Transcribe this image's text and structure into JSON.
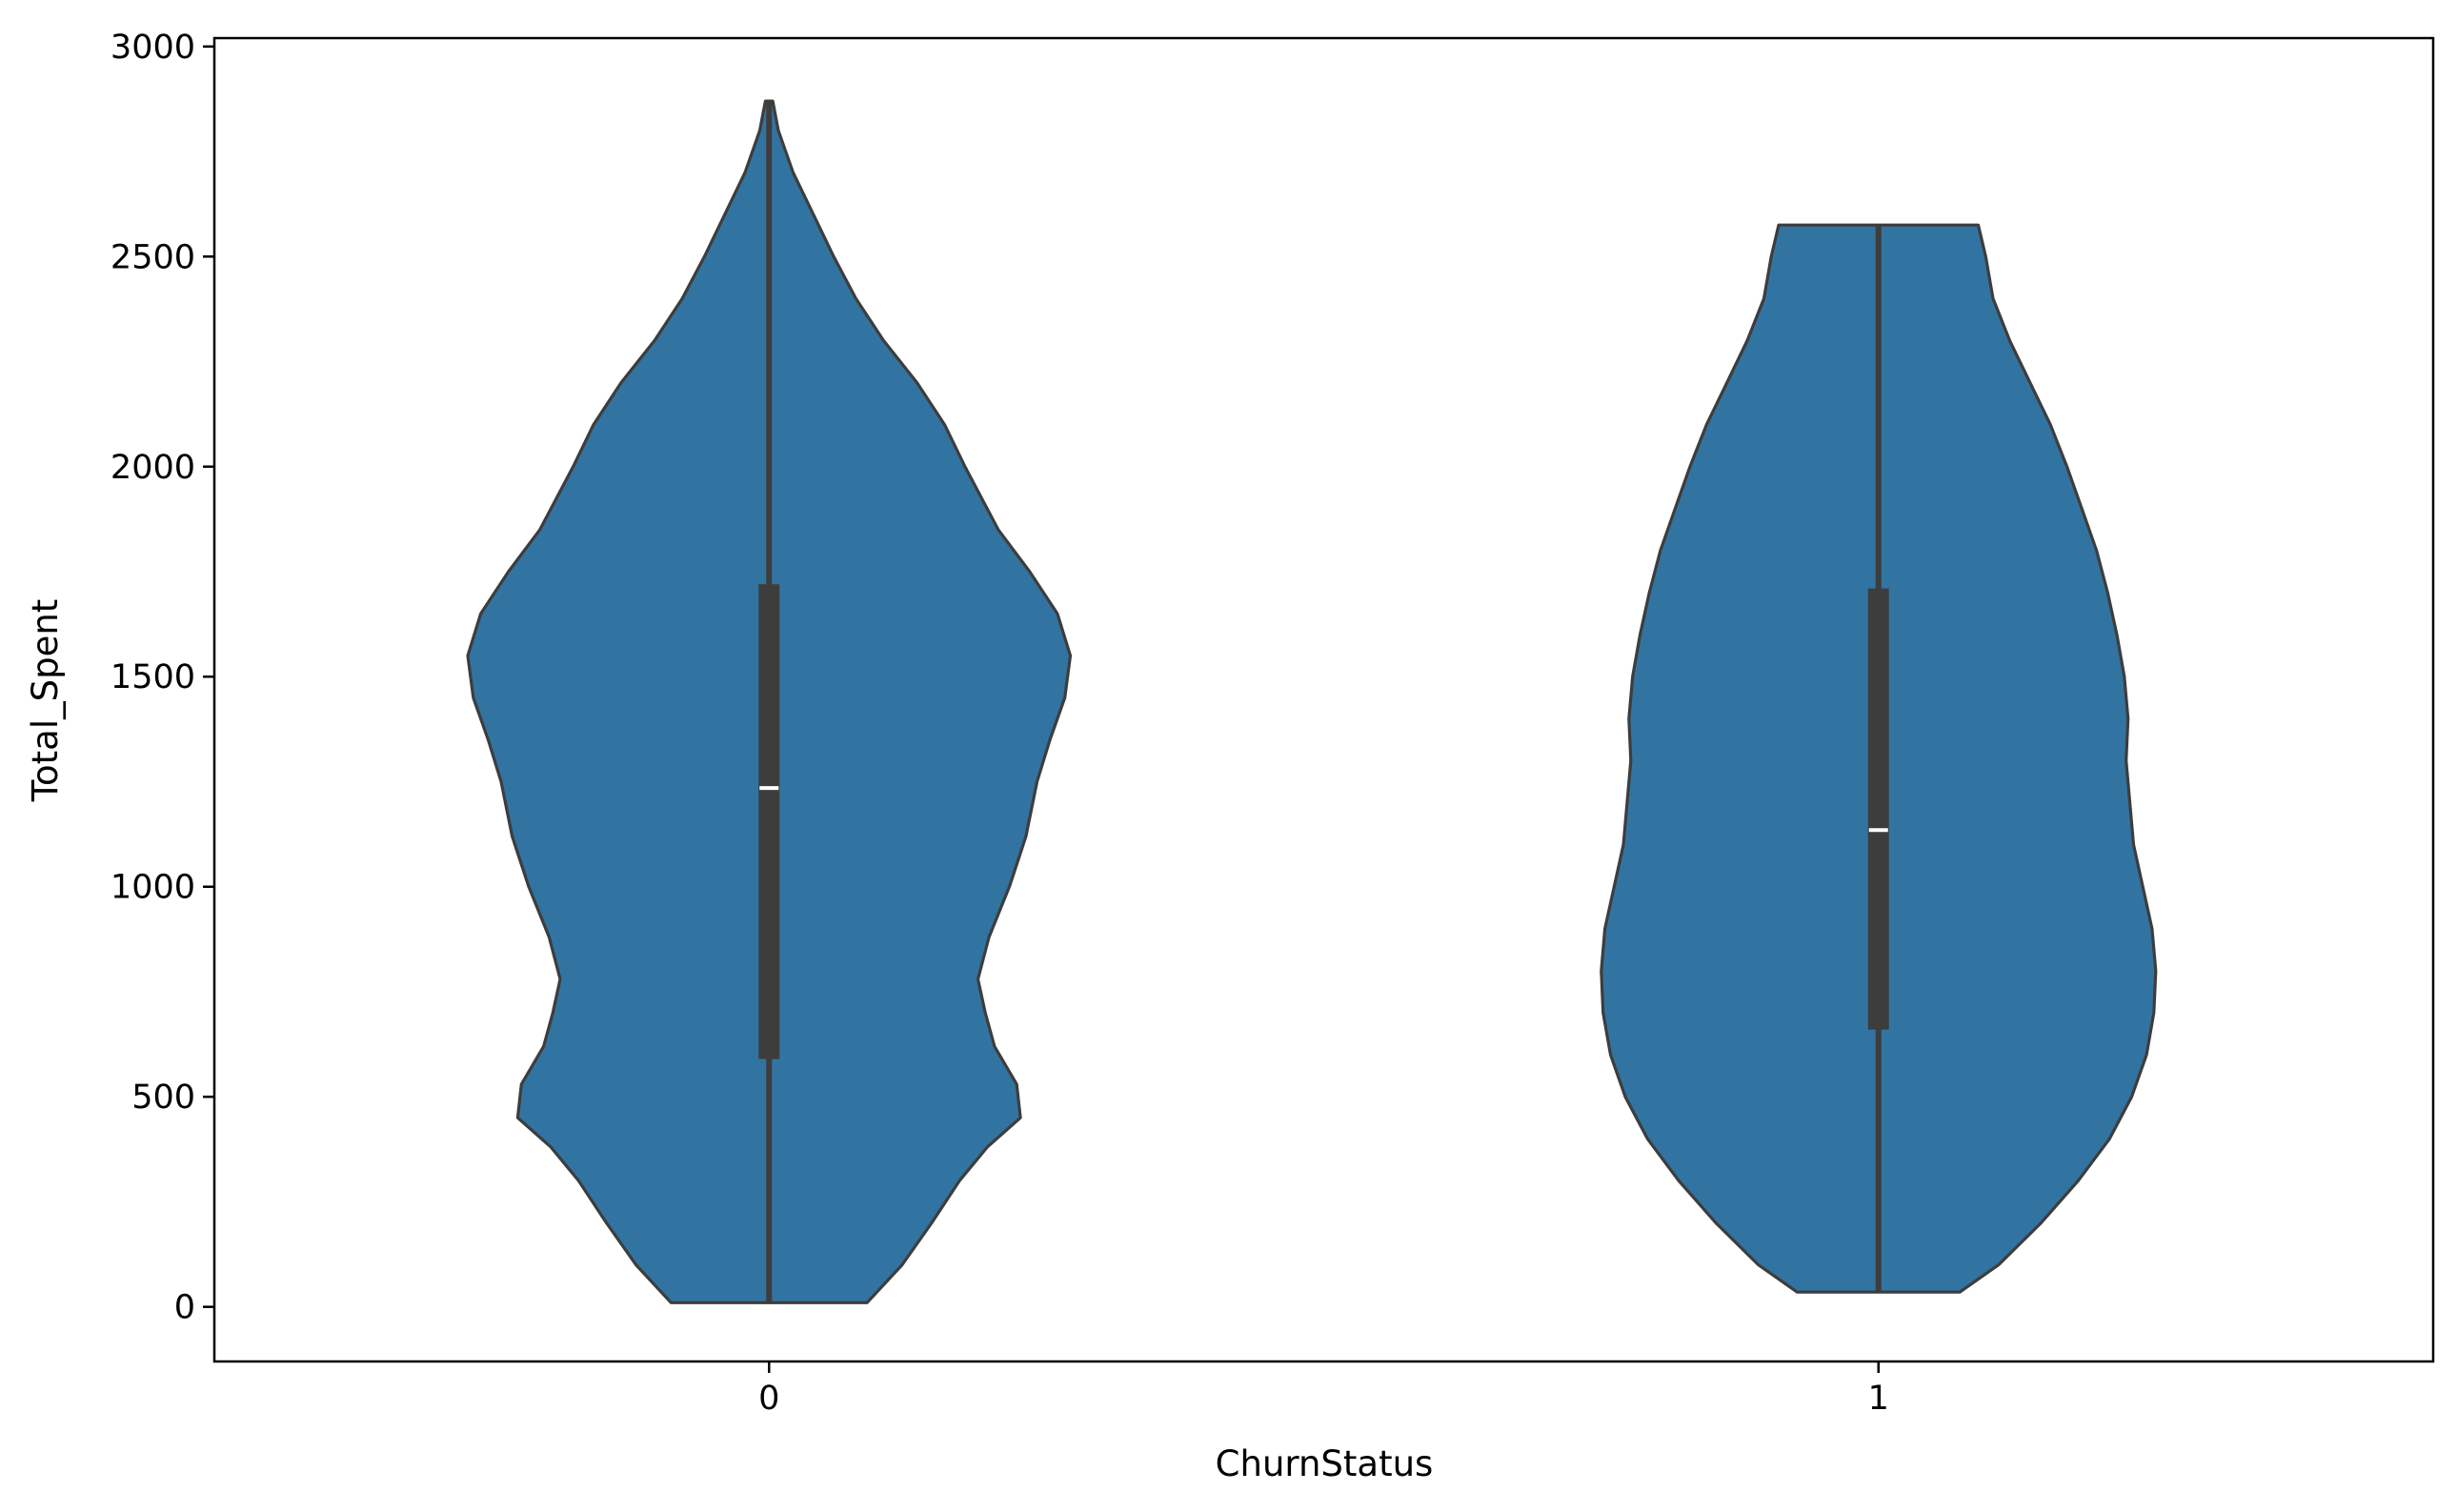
{
  "chart_data": {
    "type": "violin",
    "title": "",
    "xlabel": "ChurnStatus",
    "ylabel": "Total_Spent",
    "categories": [
      "0",
      "1"
    ],
    "ylim": [
      -130,
      3020
    ],
    "yticks": [
      0,
      500,
      1000,
      1500,
      2000,
      2500,
      3000
    ],
    "grid": false,
    "legend": "none",
    "fill_color": "#3274a1",
    "line_color": "#3d3d3d",
    "violins": [
      {
        "category": "0",
        "min": 10,
        "max": 2870,
        "q1": 590,
        "median": 1235,
        "q3": 1720,
        "density": [
          [
            10,
            0.53
          ],
          [
            100,
            0.72
          ],
          [
            200,
            0.88
          ],
          [
            300,
            1.03
          ],
          [
            380,
            1.18
          ],
          [
            450,
            1.36
          ],
          [
            530,
            1.34
          ],
          [
            620,
            1.22
          ],
          [
            700,
            1.17
          ],
          [
            780,
            1.13
          ],
          [
            880,
            1.19
          ],
          [
            1000,
            1.3
          ],
          [
            1120,
            1.39
          ],
          [
            1250,
            1.45
          ],
          [
            1350,
            1.52
          ],
          [
            1450,
            1.6
          ],
          [
            1550,
            1.63
          ],
          [
            1650,
            1.56
          ],
          [
            1750,
            1.41
          ],
          [
            1850,
            1.24
          ],
          [
            2000,
            1.06
          ],
          [
            2100,
            0.95
          ],
          [
            2200,
            0.8
          ],
          [
            2300,
            0.62
          ],
          [
            2400,
            0.47
          ],
          [
            2500,
            0.35
          ],
          [
            2600,
            0.24
          ],
          [
            2700,
            0.13
          ],
          [
            2800,
            0.05
          ],
          [
            2870,
            0.02
          ]
        ]
      },
      {
        "category": "1",
        "min": 35,
        "max": 2575,
        "q1": 660,
        "median": 1135,
        "q3": 1710,
        "density": [
          [
            35,
            0.44
          ],
          [
            100,
            0.65
          ],
          [
            200,
            0.88
          ],
          [
            300,
            1.08
          ],
          [
            400,
            1.25
          ],
          [
            500,
            1.37
          ],
          [
            600,
            1.45
          ],
          [
            700,
            1.49
          ],
          [
            800,
            1.5
          ],
          [
            900,
            1.48
          ],
          [
            1000,
            1.43
          ],
          [
            1100,
            1.38
          ],
          [
            1200,
            1.36
          ],
          [
            1300,
            1.34
          ],
          [
            1400,
            1.35
          ],
          [
            1500,
            1.33
          ],
          [
            1600,
            1.29
          ],
          [
            1700,
            1.24
          ],
          [
            1800,
            1.18
          ],
          [
            1900,
            1.1
          ],
          [
            2000,
            1.02
          ],
          [
            2100,
            0.93
          ],
          [
            2200,
            0.82
          ],
          [
            2300,
            0.71
          ],
          [
            2400,
            0.62
          ],
          [
            2500,
            0.58
          ],
          [
            2575,
            0.54
          ]
        ]
      }
    ]
  }
}
